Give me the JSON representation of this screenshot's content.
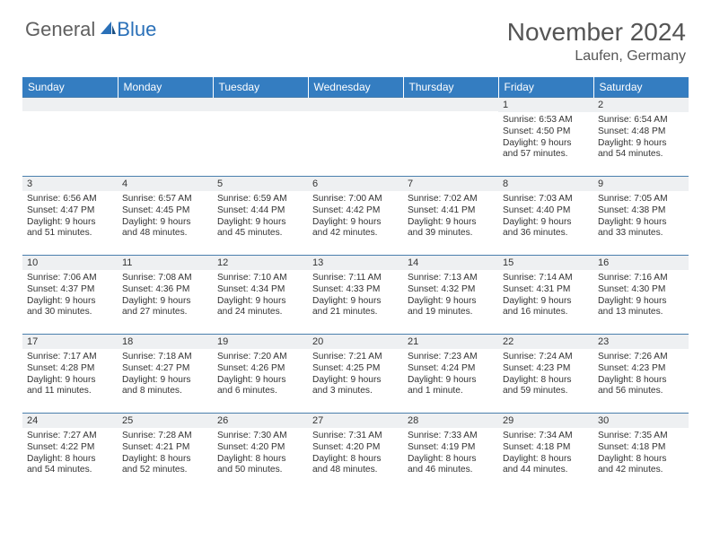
{
  "logo": {
    "general": "General",
    "blue": "Blue"
  },
  "title": "November 2024",
  "location": "Laufen, Germany",
  "colors": {
    "header_bg": "#347dc1",
    "header_text": "#ffffff",
    "daynum_bg": "#eef0f2",
    "border": "#4a7fad",
    "logo_blue": "#2a70b8",
    "logo_gray": "#606060"
  },
  "day_headers": [
    "Sunday",
    "Monday",
    "Tuesday",
    "Wednesday",
    "Thursday",
    "Friday",
    "Saturday"
  ],
  "weeks": [
    [
      {
        "n": "",
        "lines": []
      },
      {
        "n": "",
        "lines": []
      },
      {
        "n": "",
        "lines": []
      },
      {
        "n": "",
        "lines": []
      },
      {
        "n": "",
        "lines": []
      },
      {
        "n": "1",
        "lines": [
          "Sunrise: 6:53 AM",
          "Sunset: 4:50 PM",
          "Daylight: 9 hours",
          "and 57 minutes."
        ]
      },
      {
        "n": "2",
        "lines": [
          "Sunrise: 6:54 AM",
          "Sunset: 4:48 PM",
          "Daylight: 9 hours",
          "and 54 minutes."
        ]
      }
    ],
    [
      {
        "n": "3",
        "lines": [
          "Sunrise: 6:56 AM",
          "Sunset: 4:47 PM",
          "Daylight: 9 hours",
          "and 51 minutes."
        ]
      },
      {
        "n": "4",
        "lines": [
          "Sunrise: 6:57 AM",
          "Sunset: 4:45 PM",
          "Daylight: 9 hours",
          "and 48 minutes."
        ]
      },
      {
        "n": "5",
        "lines": [
          "Sunrise: 6:59 AM",
          "Sunset: 4:44 PM",
          "Daylight: 9 hours",
          "and 45 minutes."
        ]
      },
      {
        "n": "6",
        "lines": [
          "Sunrise: 7:00 AM",
          "Sunset: 4:42 PM",
          "Daylight: 9 hours",
          "and 42 minutes."
        ]
      },
      {
        "n": "7",
        "lines": [
          "Sunrise: 7:02 AM",
          "Sunset: 4:41 PM",
          "Daylight: 9 hours",
          "and 39 minutes."
        ]
      },
      {
        "n": "8",
        "lines": [
          "Sunrise: 7:03 AM",
          "Sunset: 4:40 PM",
          "Daylight: 9 hours",
          "and 36 minutes."
        ]
      },
      {
        "n": "9",
        "lines": [
          "Sunrise: 7:05 AM",
          "Sunset: 4:38 PM",
          "Daylight: 9 hours",
          "and 33 minutes."
        ]
      }
    ],
    [
      {
        "n": "10",
        "lines": [
          "Sunrise: 7:06 AM",
          "Sunset: 4:37 PM",
          "Daylight: 9 hours",
          "and 30 minutes."
        ]
      },
      {
        "n": "11",
        "lines": [
          "Sunrise: 7:08 AM",
          "Sunset: 4:36 PM",
          "Daylight: 9 hours",
          "and 27 minutes."
        ]
      },
      {
        "n": "12",
        "lines": [
          "Sunrise: 7:10 AM",
          "Sunset: 4:34 PM",
          "Daylight: 9 hours",
          "and 24 minutes."
        ]
      },
      {
        "n": "13",
        "lines": [
          "Sunrise: 7:11 AM",
          "Sunset: 4:33 PM",
          "Daylight: 9 hours",
          "and 21 minutes."
        ]
      },
      {
        "n": "14",
        "lines": [
          "Sunrise: 7:13 AM",
          "Sunset: 4:32 PM",
          "Daylight: 9 hours",
          "and 19 minutes."
        ]
      },
      {
        "n": "15",
        "lines": [
          "Sunrise: 7:14 AM",
          "Sunset: 4:31 PM",
          "Daylight: 9 hours",
          "and 16 minutes."
        ]
      },
      {
        "n": "16",
        "lines": [
          "Sunrise: 7:16 AM",
          "Sunset: 4:30 PM",
          "Daylight: 9 hours",
          "and 13 minutes."
        ]
      }
    ],
    [
      {
        "n": "17",
        "lines": [
          "Sunrise: 7:17 AM",
          "Sunset: 4:28 PM",
          "Daylight: 9 hours",
          "and 11 minutes."
        ]
      },
      {
        "n": "18",
        "lines": [
          "Sunrise: 7:18 AM",
          "Sunset: 4:27 PM",
          "Daylight: 9 hours",
          "and 8 minutes."
        ]
      },
      {
        "n": "19",
        "lines": [
          "Sunrise: 7:20 AM",
          "Sunset: 4:26 PM",
          "Daylight: 9 hours",
          "and 6 minutes."
        ]
      },
      {
        "n": "20",
        "lines": [
          "Sunrise: 7:21 AM",
          "Sunset: 4:25 PM",
          "Daylight: 9 hours",
          "and 3 minutes."
        ]
      },
      {
        "n": "21",
        "lines": [
          "Sunrise: 7:23 AM",
          "Sunset: 4:24 PM",
          "Daylight: 9 hours",
          "and 1 minute."
        ]
      },
      {
        "n": "22",
        "lines": [
          "Sunrise: 7:24 AM",
          "Sunset: 4:23 PM",
          "Daylight: 8 hours",
          "and 59 minutes."
        ]
      },
      {
        "n": "23",
        "lines": [
          "Sunrise: 7:26 AM",
          "Sunset: 4:23 PM",
          "Daylight: 8 hours",
          "and 56 minutes."
        ]
      }
    ],
    [
      {
        "n": "24",
        "lines": [
          "Sunrise: 7:27 AM",
          "Sunset: 4:22 PM",
          "Daylight: 8 hours",
          "and 54 minutes."
        ]
      },
      {
        "n": "25",
        "lines": [
          "Sunrise: 7:28 AM",
          "Sunset: 4:21 PM",
          "Daylight: 8 hours",
          "and 52 minutes."
        ]
      },
      {
        "n": "26",
        "lines": [
          "Sunrise: 7:30 AM",
          "Sunset: 4:20 PM",
          "Daylight: 8 hours",
          "and 50 minutes."
        ]
      },
      {
        "n": "27",
        "lines": [
          "Sunrise: 7:31 AM",
          "Sunset: 4:20 PM",
          "Daylight: 8 hours",
          "and 48 minutes."
        ]
      },
      {
        "n": "28",
        "lines": [
          "Sunrise: 7:33 AM",
          "Sunset: 4:19 PM",
          "Daylight: 8 hours",
          "and 46 minutes."
        ]
      },
      {
        "n": "29",
        "lines": [
          "Sunrise: 7:34 AM",
          "Sunset: 4:18 PM",
          "Daylight: 8 hours",
          "and 44 minutes."
        ]
      },
      {
        "n": "30",
        "lines": [
          "Sunrise: 7:35 AM",
          "Sunset: 4:18 PM",
          "Daylight: 8 hours",
          "and 42 minutes."
        ]
      }
    ]
  ]
}
